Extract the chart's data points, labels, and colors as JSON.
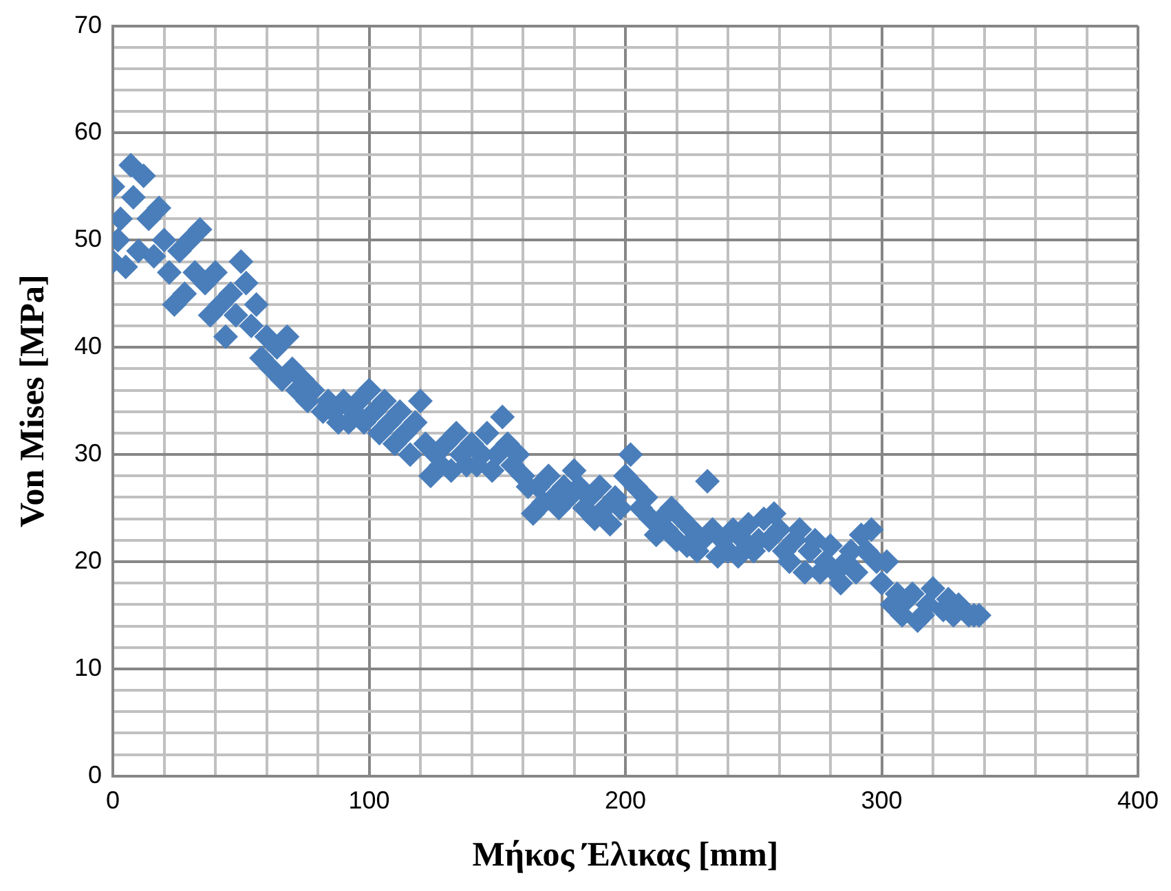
{
  "chart_data": {
    "type": "scatter",
    "xlabel": "Μήκος Έλικας [mm]",
    "ylabel": "Von Mises [MPa]",
    "marker": "diamond",
    "grid": true,
    "legend": false,
    "xlim": [
      0,
      400
    ],
    "ylim": [
      0,
      70
    ],
    "xticks": [
      0,
      {
        "value": 20,
        "label": null
      },
      {
        "value": 40,
        "label": null
      },
      {
        "value": 60,
        "label": null
      },
      {
        "value": 80,
        "label": null
      },
      100,
      {
        "value": 120,
        "label": null
      },
      {
        "value": 140,
        "label": null
      },
      {
        "value": 160,
        "label": null
      },
      {
        "value": 180,
        "label": null
      },
      200,
      {
        "value": 220,
        "label": null
      },
      {
        "value": 240,
        "label": null
      },
      {
        "value": 260,
        "label": null
      },
      {
        "value": 280,
        "label": null
      },
      300,
      {
        "value": 320,
        "label": null
      },
      {
        "value": 340,
        "label": null
      },
      {
        "value": 360,
        "label": null
      },
      {
        "value": 380,
        "label": null
      },
      400
    ],
    "yticks": [
      0,
      {
        "value": 2,
        "label": null
      },
      {
        "value": 4,
        "label": null
      },
      {
        "value": 6,
        "label": null
      },
      {
        "value": 8,
        "label": null
      },
      10,
      {
        "value": 12,
        "label": null
      },
      {
        "value": 14,
        "label": null
      },
      {
        "value": 16,
        "label": null
      },
      {
        "value": 18,
        "label": null
      },
      20,
      {
        "value": 22,
        "label": null
      },
      {
        "value": 24,
        "label": null
      },
      {
        "value": 26,
        "label": null
      },
      {
        "value": 28,
        "label": null
      },
      30,
      {
        "value": 32,
        "label": null
      },
      {
        "value": 34,
        "label": null
      },
      {
        "value": 36,
        "label": null
      },
      {
        "value": 38,
        "label": null
      },
      40,
      {
        "value": 42,
        "label": null
      },
      {
        "value": 44,
        "label": null
      },
      {
        "value": 46,
        "label": null
      },
      {
        "value": 48,
        "label": null
      },
      50,
      {
        "value": 52,
        "label": null
      },
      {
        "value": 54,
        "label": null
      },
      {
        "value": 56,
        "label": null
      },
      {
        "value": 58,
        "label": null
      },
      60,
      {
        "value": 62,
        "label": null
      },
      {
        "value": 64,
        "label": null
      },
      {
        "value": 66,
        "label": null
      },
      {
        "value": 68,
        "label": null
      },
      70
    ],
    "series": [
      {
        "color": "#4a7ebb",
        "x": [
          0,
          0,
          2,
          3,
          5,
          7,
          8,
          10,
          12,
          14,
          16,
          18,
          20,
          22,
          24,
          26,
          28,
          30,
          32,
          34,
          36,
          38,
          40,
          42,
          44,
          46,
          48,
          50,
          52,
          54,
          56,
          58,
          60,
          62,
          64,
          66,
          68,
          70,
          72,
          74,
          76,
          78,
          82,
          84,
          86,
          88,
          90,
          92,
          94,
          96,
          98,
          100,
          102,
          104,
          106,
          108,
          110,
          112,
          114,
          116,
          118,
          120,
          122,
          124,
          126,
          128,
          130,
          132,
          134,
          136,
          138,
          140,
          142,
          144,
          146,
          148,
          150,
          152,
          154,
          156,
          158,
          160,
          162,
          164,
          166,
          168,
          170,
          172,
          174,
          176,
          178,
          180,
          182,
          184,
          186,
          188,
          190,
          192,
          194,
          196,
          198,
          200,
          202,
          204,
          206,
          208,
          210,
          212,
          214,
          216,
          218,
          220,
          222,
          224,
          226,
          228,
          230,
          232,
          234,
          236,
          238,
          240,
          242,
          244,
          246,
          248,
          250,
          252,
          254,
          256,
          258,
          260,
          262,
          264,
          266,
          268,
          270,
          272,
          274,
          276,
          278,
          280,
          282,
          284,
          286,
          288,
          290,
          292,
          294,
          296,
          298,
          300,
          302,
          304,
          306,
          308,
          310,
          312,
          314,
          316,
          318,
          320,
          324,
          326,
          328,
          330,
          334,
          336,
          338
        ],
        "values": [
          55,
          48,
          50,
          52,
          47.5,
          57,
          54,
          49,
          56,
          52,
          48.5,
          53,
          50,
          47,
          44,
          49,
          45,
          50,
          47,
          51,
          46,
          43,
          47,
          44,
          41,
          45,
          43,
          48,
          46,
          42,
          44,
          39,
          41,
          38,
          40,
          37,
          41,
          38,
          36,
          37,
          35,
          36,
          34,
          35,
          34,
          33,
          35,
          33,
          34,
          35,
          33,
          36,
          34,
          32,
          35,
          33,
          31,
          34,
          32,
          30,
          33,
          35,
          31,
          28,
          30,
          29,
          31,
          28.5,
          32,
          30,
          29,
          31,
          29,
          30,
          32,
          28.5,
          30,
          33.5,
          31,
          29,
          30,
          28,
          27,
          24.5,
          27,
          25.5,
          28,
          26,
          25,
          27,
          26,
          28.5,
          27,
          25,
          26,
          24,
          27,
          25,
          23.5,
          26,
          25,
          28,
          30,
          27,
          25,
          26,
          24,
          22.5,
          24,
          23,
          25,
          22,
          24,
          21.5,
          23,
          21,
          22,
          27.5,
          23,
          20.5,
          22,
          21,
          23,
          20.5,
          22,
          23.5,
          21,
          22,
          24,
          22,
          24.5,
          23,
          21,
          20,
          22,
          23,
          19,
          21,
          22,
          19,
          20,
          21.5,
          19,
          18,
          20,
          21,
          19,
          22.5,
          21,
          23,
          20,
          18,
          20,
          16,
          17,
          15,
          16.5,
          17,
          14.5,
          15,
          16,
          17.5,
          15.5,
          16.5,
          15,
          16,
          15,
          15,
          15
        ]
      }
    ]
  }
}
